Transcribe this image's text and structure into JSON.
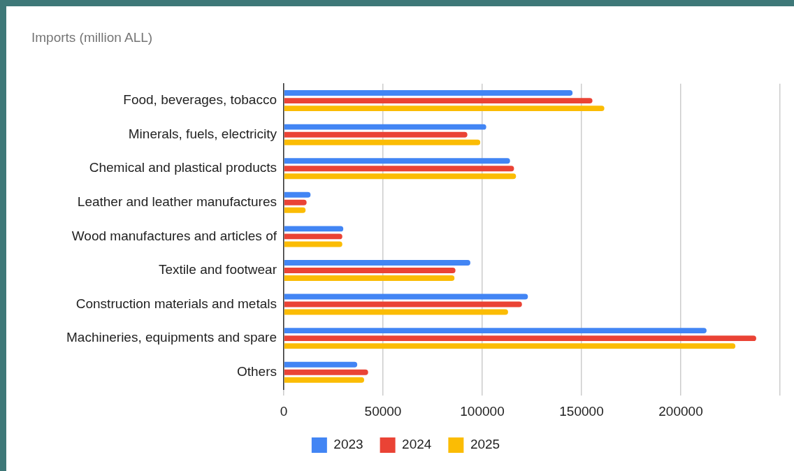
{
  "chart_data": {
    "type": "bar",
    "orientation": "horizontal",
    "title": "Imports (million ALL)",
    "categories": [
      "Food, beverages, tobacco",
      "Minerals, fuels, electricity",
      "Chemical and plastical products",
      "Leather and leather manufactures",
      "Wood manufactures and articles of",
      "Textile and footwear",
      "Construction materials and metals",
      "Machineries, equipments and spare",
      "Others"
    ],
    "series": [
      {
        "name": "2023",
        "color": "#4285f4",
        "values": [
          145500,
          102000,
          114000,
          13500,
          30000,
          94000,
          123000,
          213000,
          37000
        ]
      },
      {
        "name": "2024",
        "color": "#ea4335",
        "values": [
          155500,
          92500,
          116000,
          11500,
          29500,
          86500,
          120000,
          238000,
          42500
        ]
      },
      {
        "name": "2025",
        "color": "#fbbc04",
        "values": [
          161500,
          99000,
          117000,
          11000,
          29500,
          86000,
          113000,
          227500,
          40500
        ]
      }
    ],
    "xlim": [
      0,
      250000
    ],
    "xticks": [
      0,
      50000,
      100000,
      150000,
      200000,
      {
        "value": 250000,
        "label": null
      }
    ],
    "grid": "x",
    "legend": "bottom"
  }
}
